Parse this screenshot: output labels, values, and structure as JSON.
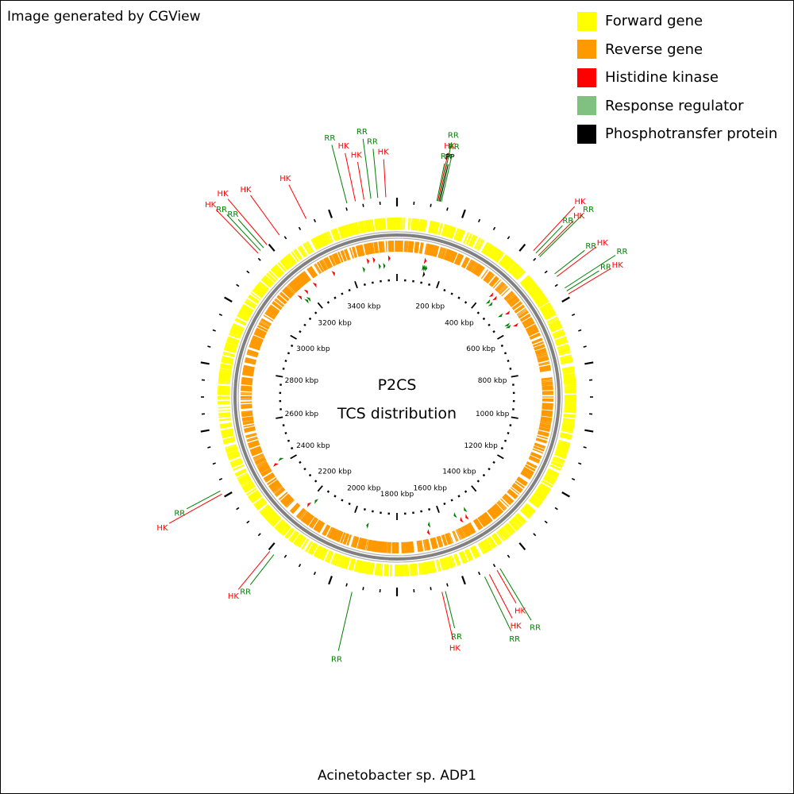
{
  "credit": "Image generated by CGView",
  "legend": [
    {
      "label": "Forward gene",
      "color": "#ffff00"
    },
    {
      "label": "Reverse gene",
      "color": "#ff9900"
    },
    {
      "label": "Histidine kinase",
      "color": "#ff0000"
    },
    {
      "label": "Response regulator",
      "color": "#80c080"
    },
    {
      "label": "Phosphotransfer protein",
      "color": "#000000"
    }
  ],
  "center": {
    "line1": "P2CS",
    "line2": "TCS distribution"
  },
  "organism": "Acinetobacter sp. ADP1",
  "colors": {
    "hk": "#ff0000",
    "rr": "#008000",
    "pp": "#000000",
    "backbone": "#808080"
  },
  "genome_kbp": 3600,
  "tick_labels": [
    "200 kbp",
    "400 kbp",
    "600 kbp",
    "800 kbp",
    "1000 kbp",
    "1200 kbp",
    "1400 kbp",
    "1600 kbp",
    "1800 kbp",
    "2000 kbp",
    "2200 kbp",
    "2400 kbp",
    "2600 kbp",
    "2800 kbp",
    "3000 kbp",
    "3200 kbp",
    "3400 kbp"
  ],
  "features": [
    {
      "type": "HK",
      "kbp": 3568
    },
    {
      "type": "RR",
      "kbp": 3545
    },
    {
      "type": "RR",
      "kbp": 3525
    },
    {
      "type": "HK",
      "kbp": 3505
    },
    {
      "type": "HK",
      "kbp": 3480
    },
    {
      "type": "RR",
      "kbp": 3455
    },
    {
      "type": "HK",
      "kbp": 3330
    },
    {
      "type": "HK",
      "kbp": 3240
    },
    {
      "type": "HK",
      "kbp": 3195
    },
    {
      "type": "RR",
      "kbp": 3182
    },
    {
      "type": "RR",
      "kbp": 3170
    },
    {
      "type": "HK",
      "kbp": 3160
    },
    {
      "type": "RR",
      "kbp": 115
    },
    {
      "type": "HK",
      "kbp": 118
    },
    {
      "type": "RR",
      "kbp": 121
    },
    {
      "type": "PP",
      "kbp": 124
    },
    {
      "type": "RR",
      "kbp": 128
    },
    {
      "type": "HK",
      "kbp": 430
    },
    {
      "type": "RR",
      "kbp": 440
    },
    {
      "type": "HK",
      "kbp": 450
    },
    {
      "type": "RR",
      "kbp": 455
    },
    {
      "type": "RR",
      "kbp": 520
    },
    {
      "type": "HK",
      "kbp": 530
    },
    {
      "type": "RR",
      "kbp": 570
    },
    {
      "type": "RR",
      "kbp": 580
    },
    {
      "type": "HK",
      "kbp": 590
    },
    {
      "type": "RR",
      "kbp": 1490
    },
    {
      "type": "HK",
      "kbp": 1500
    },
    {
      "type": "HK",
      "kbp": 1525
    },
    {
      "type": "RR",
      "kbp": 1540
    },
    {
      "type": "RR",
      "kbp": 1660
    },
    {
      "type": "HK",
      "kbp": 1670
    },
    {
      "type": "RR",
      "kbp": 1930
    },
    {
      "type": "RR",
      "kbp": 2180
    },
    {
      "type": "HK",
      "kbp": 2195
    },
    {
      "type": "HK",
      "kbp": 2410
    },
    {
      "type": "RR",
      "kbp": 2420
    }
  ]
}
